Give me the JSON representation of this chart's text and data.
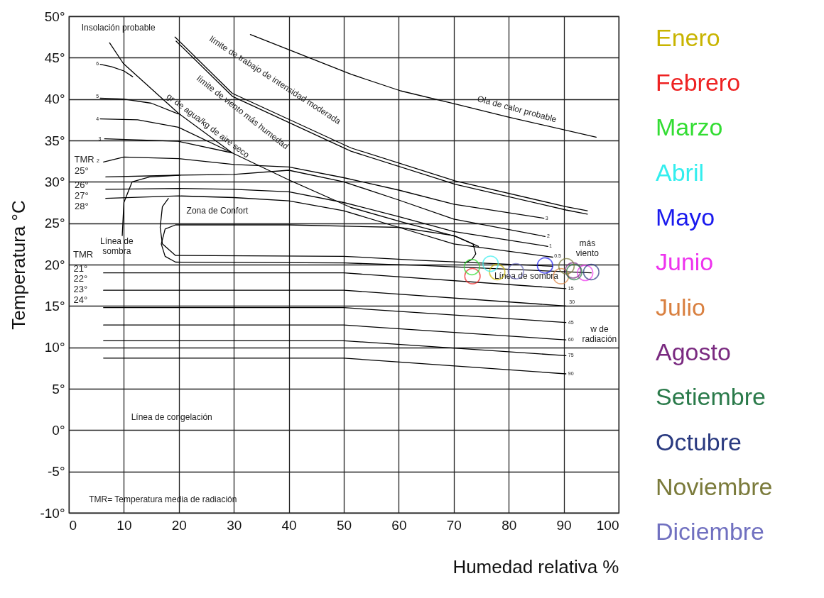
{
  "chart_data": {
    "type": "scatter",
    "xlabel": "Humedad relativa %",
    "ylabel": "Temperatura °C",
    "xlim": [
      0,
      100
    ],
    "ylim": [
      -10,
      50
    ],
    "xticks": [
      0,
      10,
      20,
      30,
      40,
      50,
      60,
      70,
      80,
      90,
      100
    ],
    "yticks": [
      {
        "value": -10,
        "label": "-10°"
      },
      {
        "value": -5,
        "label": "-5°"
      },
      {
        "value": 0,
        "label": "0°"
      },
      {
        "value": 5,
        "label": "5°"
      },
      {
        "value": 10,
        "label": "10°"
      },
      {
        "value": 15,
        "label": "15°"
      },
      {
        "value": 20,
        "label": "20°"
      },
      {
        "value": 25,
        "label": "25°"
      },
      {
        "value": 30,
        "label": "30°"
      },
      {
        "value": 35,
        "label": "35°"
      },
      {
        "value": 40,
        "label": "40°"
      },
      {
        "value": 45,
        "label": "45°"
      },
      {
        "value": 50,
        "label": "50°"
      }
    ],
    "grid": true,
    "legend": "right",
    "line_style": "solid",
    "series": [
      {
        "type": "line",
        "color": "#000000",
        "x": [
          33,
          51.3,
          60.3,
          70.3,
          80.1,
          95.9
        ],
        "values": [
          47.8,
          43.0,
          41.0,
          39.4,
          37.8,
          35.4
        ]
      },
      {
        "type": "line",
        "color": "#000000",
        "x": [
          19.3,
          29.7,
          51.3,
          70.3,
          90.4,
          94.3
        ],
        "values": [
          47.5,
          40.7,
          34.1,
          30.1,
          27.0,
          26.5
        ]
      },
      {
        "type": "line",
        "color": "#000000",
        "x": [
          19.5,
          29.8,
          51.3,
          70.3,
          90.4,
          94.3
        ],
        "values": [
          47.0,
          40.3,
          33.7,
          29.7,
          26.6,
          26.1
        ]
      },
      {
        "type": "line",
        "color": "#000000",
        "x": [
          7.4,
          9.9,
          19.9,
          29.7,
          40.1,
          51.3,
          60.3,
          70.4,
          74.5
        ],
        "values": [
          46.8,
          44.3,
          38.3,
          33.5,
          30.2,
          26.9,
          25.2,
          23.4,
          22.2
        ]
      },
      {
        "type": "line",
        "color": "#000000",
        "x": [
          5.7,
          7.8,
          10,
          11.6
        ],
        "values": [
          44.2,
          43.9,
          43.4,
          42.7
        ]
      },
      {
        "type": "line",
        "color": "#000000",
        "x": [
          5.7,
          9.9,
          15,
          19.9
        ],
        "values": [
          40.1,
          40.0,
          39.5,
          38.2
        ]
      },
      {
        "type": "line",
        "color": "#000000",
        "x": [
          5.7,
          12.5,
          19.9,
          29.7
        ],
        "values": [
          37.6,
          37.5,
          36.6,
          33.5
        ]
      },
      {
        "type": "line",
        "color": "#000000",
        "x": [
          6.5,
          19.9,
          29.7
        ],
        "values": [
          35.2,
          34.9,
          33.5
        ]
      },
      {
        "type": "line",
        "color": "#000000",
        "x": [
          6.3,
          10,
          20,
          30,
          40,
          50,
          60,
          70,
          86.4
        ],
        "values": [
          32.4,
          33.0,
          32.8,
          32.1,
          31.8,
          30.5,
          29.0,
          27.3,
          25.6
        ]
      },
      {
        "type": "line",
        "color": "#000000",
        "x": [
          6.7,
          20,
          30,
          40,
          50,
          60,
          70,
          86.6
        ],
        "values": [
          30.6,
          30.8,
          30.9,
          31.4,
          30.0,
          27.8,
          25.5,
          23.4
        ]
      },
      {
        "type": "line",
        "color": "#000000",
        "x": [
          6.7,
          20,
          30,
          40,
          50,
          60,
          70,
          87.1
        ],
        "values": [
          29.1,
          29.2,
          29.1,
          28.8,
          27.5,
          25.8,
          24.0,
          22.2
        ]
      },
      {
        "type": "line",
        "color": "#000000",
        "x": [
          6.7,
          20,
          30,
          40,
          50,
          60,
          70,
          88
        ],
        "values": [
          28.0,
          28.3,
          28.1,
          27.7,
          26.5,
          24.5,
          22.5,
          20.9
        ]
      },
      {
        "type": "line",
        "color": "#000000",
        "x": [
          9.7,
          10.0,
          11.5,
          14.7,
          20
        ],
        "values": [
          23.5,
          27.5,
          30.0,
          30.6,
          30.8
        ]
      },
      {
        "type": "line",
        "color": "#000000",
        "x": [
          18.1,
          17,
          16.6,
          17,
          19.4,
          50,
          64.2,
          88
        ],
        "values": [
          28.0,
          27,
          24.5,
          22.5,
          21.1,
          21.0,
          20.5,
          19.8
        ]
      },
      {
        "type": "line",
        "color": "#000000",
        "x": [
          95,
          64,
          50,
          19.4,
          17.5,
          16.8,
          17.5,
          19.4,
          40,
          60,
          70,
          73.5,
          74,
          73.3,
          72
        ],
        "values": [
          19.0,
          19.9,
          20.2,
          20.3,
          21.0,
          22.5,
          24.3,
          24.8,
          24.8,
          24.5,
          23.5,
          22.5,
          21.3,
          20.6,
          20.2
        ]
      },
      {
        "type": "line",
        "color": "#000000",
        "x": [
          6.3,
          50,
          90.4
        ],
        "values": [
          19.0,
          19.0,
          17.1
        ]
      },
      {
        "type": "line",
        "color": "#000000",
        "x": [
          6.3,
          50,
          90.4
        ],
        "values": [
          16.9,
          16.9,
          15.0
        ]
      },
      {
        "type": "line",
        "color": "#000000",
        "x": [
          6.3,
          50,
          90.4
        ],
        "values": [
          14.8,
          14.8,
          13.0
        ]
      },
      {
        "type": "line",
        "color": "#000000",
        "x": [
          6.3,
          50,
          90.4
        ],
        "values": [
          12.7,
          12.7,
          10.9
        ]
      },
      {
        "type": "line",
        "color": "#000000",
        "x": [
          6.3,
          50,
          90.4
        ],
        "values": [
          10.8,
          10.8,
          9.0
        ]
      },
      {
        "type": "line",
        "color": "#000000",
        "x": [
          6.3,
          50,
          90.4
        ],
        "values": [
          8.7,
          8.7,
          6.8
        ]
      },
      {
        "name": "Enero",
        "color": "#c8b400",
        "marker": "circle",
        "x": [
          77.9
        ],
        "values": [
          19.1
        ]
      },
      {
        "name": "Febrero",
        "color": "#ee2222",
        "marker": "circle",
        "x": [
          73.4
        ],
        "values": [
          18.6
        ]
      },
      {
        "name": "Marzo",
        "color": "#33dd33",
        "marker": "circle",
        "x": [
          73.3
        ],
        "values": [
          19.7
        ]
      },
      {
        "name": "Abril",
        "color": "#33eeee",
        "marker": "circle",
        "x": [
          76.7
        ],
        "values": [
          20.1
        ]
      },
      {
        "name": "Mayo",
        "color": "#1a1aee",
        "marker": "circle",
        "x": [
          86.6
        ],
        "values": [
          19.9
        ]
      },
      {
        "name": "Junio",
        "color": "#ee33ee",
        "marker": "circle",
        "x": [
          93.9
        ],
        "values": [
          19.0
        ]
      },
      {
        "name": "Julio",
        "color": "#d98040",
        "marker": "circle",
        "x": [
          89.5
        ],
        "values": [
          18.6
        ]
      },
      {
        "name": "Agosto",
        "color": "#7a2a80",
        "marker": "circle",
        "x": [
          91.7
        ],
        "values": [
          19.3
        ]
      },
      {
        "name": "Setiembre",
        "color": "#2a7a4a",
        "marker": "circle",
        "x": [
          91.9
        ],
        "values": [
          19.1
        ]
      },
      {
        "name": "Octubre",
        "color": "#2a3a80",
        "marker": "circle",
        "x": [
          95.0
        ],
        "values": [
          19.1
        ]
      },
      {
        "name": "Noviembre",
        "color": "#7a7a3a",
        "marker": "circle",
        "x": [
          90.5
        ],
        "values": [
          19.8
        ]
      },
      {
        "name": "Diciembre",
        "color": "#7070c0",
        "marker": "circle",
        "x": [
          81.3
        ],
        "values": [
          19.2
        ]
      }
    ],
    "annotations": [
      "Insolación probable",
      "límite de trabajo de intensidad moderada",
      "límite de viento más humedad",
      "gr de agua/kg de aire seco",
      "Ola de calor probable",
      "Zona de Confort",
      "Línea de\nsombra",
      "Línea de sombra",
      "más\nviento",
      "w de\nradiación",
      "Línea de congelación",
      "TMR= Temperatura media de radiación",
      "TMR",
      "25°",
      "26°",
      "27°",
      "28°",
      "TMR",
      "21°",
      "22°",
      "23°",
      "24°",
      "6",
      "5",
      "4",
      "3",
      "2",
      "3",
      "2",
      "1",
      "0.5",
      "15",
      "30",
      "45",
      "60",
      "75",
      "90"
    ]
  }
}
